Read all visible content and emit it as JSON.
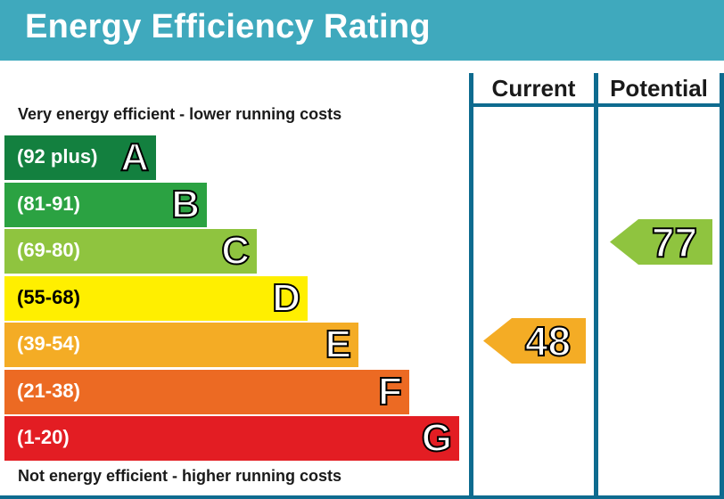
{
  "title": "Energy Efficiency Rating",
  "top_note": "Very energy efficient - lower running costs",
  "bottom_note": "Not energy efficient - higher running costs",
  "columns": [
    "Current",
    "Potential"
  ],
  "chart_data": {
    "type": "bar",
    "bands": [
      {
        "letter": "A",
        "range": "(92 plus)",
        "min": 92,
        "max": null,
        "color": "#13803f"
      },
      {
        "letter": "B",
        "range": "(81-91)",
        "min": 81,
        "max": 91,
        "color": "#2ba242"
      },
      {
        "letter": "C",
        "range": "(69-80)",
        "min": 69,
        "max": 80,
        "color": "#8fc43f"
      },
      {
        "letter": "D",
        "range": "(55-68)",
        "min": 55,
        "max": 68,
        "color": "#ffef00"
      },
      {
        "letter": "E",
        "range": "(39-54)",
        "min": 39,
        "max": 54,
        "color": "#f4ac25"
      },
      {
        "letter": "F",
        "range": "(21-38)",
        "min": 21,
        "max": 38,
        "color": "#ec6a23"
      },
      {
        "letter": "G",
        "range": "(1-20)",
        "min": 1,
        "max": 20,
        "color": "#e31d23"
      }
    ],
    "current": {
      "value": 48,
      "band": "E",
      "color": "#f4ac25"
    },
    "potential": {
      "value": 77,
      "band": "C",
      "color": "#8fc43f"
    }
  }
}
